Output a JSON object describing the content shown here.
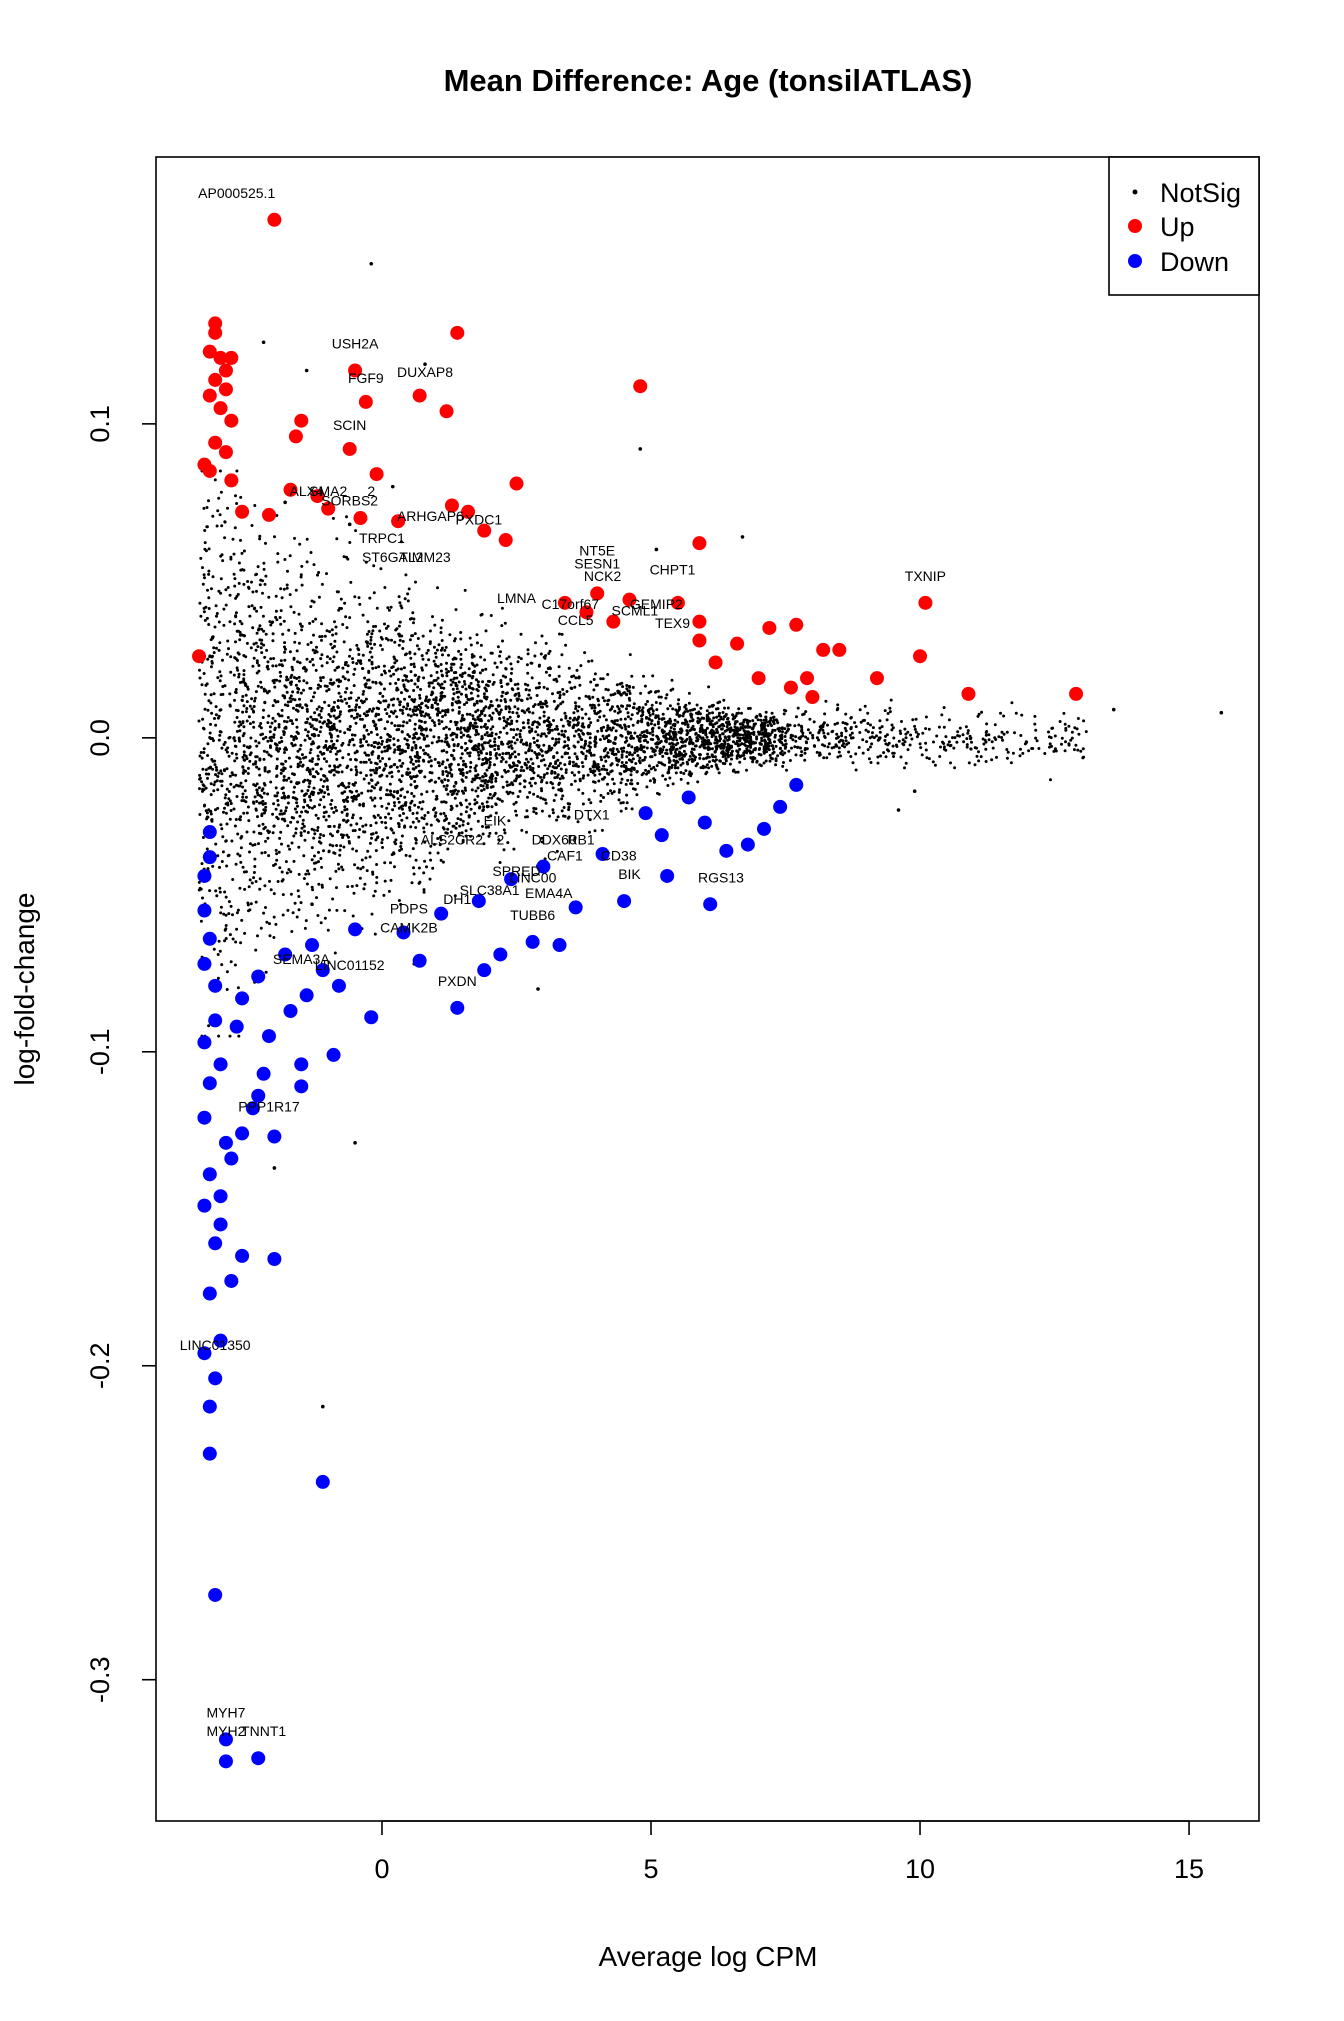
{
  "chart_data": {
    "type": "scatter",
    "title": "Mean Difference: Age (tonsilATLAS)",
    "xlabel": "Average log CPM",
    "ylabel": "log-fold-change",
    "xlim": [
      -4.2,
      16.3
    ],
    "ylim": [
      -0.345,
      0.185
    ],
    "xticks": [
      0,
      5,
      10,
      15
    ],
    "yticks": [
      0.1,
      0.0,
      -0.1,
      -0.2,
      -0.3
    ],
    "xtick_labels": [
      "0",
      "5",
      "10",
      "15"
    ],
    "ytick_labels": [
      "0.1",
      "0.0",
      "-0.1",
      "-0.2",
      "-0.3"
    ],
    "grid": false,
    "legend_position": "top-right",
    "legend": [
      {
        "label": "NotSig",
        "color": "#000000",
        "marker": "small-dot"
      },
      {
        "label": "Up",
        "color": "#ff0000",
        "marker": "large-dot"
      },
      {
        "label": "Down",
        "color": "#0000ff",
        "marker": "large-dot"
      }
    ],
    "notsig_outliers": [
      [
        -0.2,
        0.151
      ],
      [
        -2.2,
        0.126
      ],
      [
        -1.4,
        0.117
      ],
      [
        0.8,
        0.119
      ],
      [
        4.8,
        0.092
      ],
      [
        6.7,
        0.064
      ],
      [
        5.1,
        0.06
      ],
      [
        0.2,
        0.08
      ],
      [
        -1.8,
        0.075
      ],
      [
        -0.6,
        0.068
      ],
      [
        2.9,
        -0.08
      ],
      [
        -0.5,
        -0.129
      ],
      [
        -2.0,
        -0.137
      ],
      [
        -1.1,
        -0.213
      ],
      [
        0.6,
        -0.072
      ],
      [
        -1.3,
        -0.053
      ],
      [
        15.6,
        0.008
      ],
      [
        9.6,
        -0.023
      ],
      [
        9.9,
        -0.017
      ],
      [
        13.6,
        0.009
      ]
    ],
    "up_points": [
      [
        -2.0,
        0.165
      ],
      [
        -3.1,
        0.132
      ],
      [
        -3.1,
        0.129
      ],
      [
        -2.8,
        0.121
      ],
      [
        -3.2,
        0.123
      ],
      [
        -3.0,
        0.121
      ],
      [
        -2.9,
        0.117
      ],
      [
        -3.1,
        0.114
      ],
      [
        -3.2,
        0.109
      ],
      [
        -2.9,
        0.111
      ],
      [
        -3.0,
        0.105
      ],
      [
        -2.8,
        0.101
      ],
      [
        -3.1,
        0.094
      ],
      [
        -2.9,
        0.091
      ],
      [
        -3.2,
        0.085
      ],
      [
        -2.8,
        0.082
      ],
      [
        -3.3,
        0.087
      ],
      [
        1.4,
        0.129
      ],
      [
        -0.5,
        0.117
      ],
      [
        4.8,
        0.112
      ],
      [
        -0.3,
        0.107
      ],
      [
        0.7,
        0.109
      ],
      [
        1.2,
        0.104
      ],
      [
        -1.5,
        0.101
      ],
      [
        -0.6,
        0.092
      ],
      [
        -1.6,
        0.096
      ],
      [
        -0.1,
        0.084
      ],
      [
        2.5,
        0.081
      ],
      [
        -3.4,
        0.026
      ],
      [
        -2.6,
        0.072
      ],
      [
        -2.1,
        0.071
      ],
      [
        -1.7,
        0.079
      ],
      [
        -1.2,
        0.077
      ],
      [
        -1.0,
        0.073
      ],
      [
        -0.4,
        0.07
      ],
      [
        0.3,
        0.069
      ],
      [
        1.3,
        0.074
      ],
      [
        1.6,
        0.072
      ],
      [
        1.9,
        0.066
      ],
      [
        2.3,
        0.063
      ],
      [
        5.9,
        0.062
      ],
      [
        10.1,
        0.043
      ],
      [
        12.9,
        0.014
      ],
      [
        10.9,
        0.014
      ],
      [
        10.0,
        0.026
      ],
      [
        9.2,
        0.019
      ],
      [
        8.5,
        0.028
      ],
      [
        8.2,
        0.028
      ],
      [
        7.7,
        0.036
      ],
      [
        7.2,
        0.035
      ],
      [
        6.6,
        0.03
      ],
      [
        6.2,
        0.024
      ],
      [
        7.9,
        0.019
      ],
      [
        8.0,
        0.013
      ],
      [
        7.6,
        0.016
      ],
      [
        7.0,
        0.019
      ],
      [
        5.9,
        0.037
      ],
      [
        5.5,
        0.043
      ],
      [
        5.9,
        0.031
      ],
      [
        4.6,
        0.044
      ],
      [
        4.0,
        0.046
      ],
      [
        3.4,
        0.043
      ],
      [
        3.8,
        0.04
      ],
      [
        4.3,
        0.037
      ]
    ],
    "down_points": [
      [
        -1.1,
        -0.237
      ],
      [
        -3.1,
        -0.273
      ],
      [
        -2.9,
        -0.326
      ],
      [
        -2.3,
        -0.325
      ],
      [
        -2.9,
        -0.319
      ],
      [
        -3.2,
        -0.228
      ],
      [
        -3.2,
        -0.213
      ],
      [
        -3.1,
        -0.204
      ],
      [
        -3.0,
        -0.192
      ],
      [
        -3.3,
        -0.196
      ],
      [
        -3.2,
        -0.177
      ],
      [
        -2.8,
        -0.173
      ],
      [
        -2.6,
        -0.165
      ],
      [
        -2.0,
        -0.166
      ],
      [
        -3.1,
        -0.161
      ],
      [
        -3.0,
        -0.155
      ],
      [
        -3.3,
        -0.149
      ],
      [
        -3.0,
        -0.146
      ],
      [
        -3.2,
        -0.139
      ],
      [
        -2.8,
        -0.134
      ],
      [
        -2.9,
        -0.129
      ],
      [
        -2.0,
        -0.127
      ],
      [
        -2.6,
        -0.126
      ],
      [
        -2.4,
        -0.118
      ],
      [
        -3.3,
        -0.121
      ],
      [
        -2.3,
        -0.114
      ],
      [
        -2.2,
        -0.107
      ],
      [
        -3.0,
        -0.104
      ],
      [
        -1.5,
        -0.111
      ],
      [
        -1.5,
        -0.104
      ],
      [
        -0.9,
        -0.101
      ],
      [
        -3.3,
        -0.097
      ],
      [
        -2.7,
        -0.092
      ],
      [
        -2.1,
        -0.095
      ],
      [
        -1.7,
        -0.087
      ],
      [
        -1.4,
        -0.082
      ],
      [
        -0.8,
        -0.079
      ],
      [
        -0.2,
        -0.089
      ],
      [
        -1.1,
        -0.074
      ],
      [
        1.4,
        -0.086
      ],
      [
        0.7,
        -0.071
      ],
      [
        1.9,
        -0.074
      ],
      [
        2.2,
        -0.069
      ],
      [
        2.8,
        -0.065
      ],
      [
        3.3,
        -0.066
      ],
      [
        4.5,
        -0.052
      ],
      [
        5.3,
        -0.044
      ],
      [
        6.1,
        -0.053
      ],
      [
        6.4,
        -0.036
      ],
      [
        6.8,
        -0.034
      ],
      [
        7.1,
        -0.029
      ],
      [
        7.4,
        -0.022
      ],
      [
        7.7,
        -0.015
      ],
      [
        6.0,
        -0.027
      ],
      [
        5.7,
        -0.019
      ],
      [
        5.2,
        -0.031
      ],
      [
        4.9,
        -0.024
      ],
      [
        4.1,
        -0.037
      ],
      [
        3.6,
        -0.054
      ],
      [
        3.0,
        -0.041
      ],
      [
        2.4,
        -0.045
      ],
      [
        1.8,
        -0.052
      ],
      [
        1.1,
        -0.056
      ],
      [
        0.4,
        -0.062
      ],
      [
        -0.5,
        -0.061
      ],
      [
        -1.3,
        -0.066
      ],
      [
        -1.8,
        -0.069
      ],
      [
        -2.3,
        -0.076
      ],
      [
        -2.6,
        -0.083
      ],
      [
        -3.2,
        -0.038
      ],
      [
        -3.3,
        -0.044
      ],
      [
        -3.3,
        -0.055
      ],
      [
        -3.2,
        -0.064
      ],
      [
        -3.3,
        -0.072
      ],
      [
        -3.1,
        -0.079
      ],
      [
        -3.2,
        -0.03
      ],
      [
        -3.1,
        -0.09
      ],
      [
        -3.2,
        -0.11
      ]
    ],
    "annotations": [
      {
        "label": "AP000525.1",
        "x": -2.7,
        "y": 0.172
      },
      {
        "label": "USH2A",
        "x": -0.5,
        "y": 0.124
      },
      {
        "label": "FGF9",
        "x": -0.3,
        "y": 0.113
      },
      {
        "label": "DUXAP8",
        "x": 0.8,
        "y": 0.115
      },
      {
        "label": "SCIN",
        "x": -0.6,
        "y": 0.098
      },
      {
        "label": "ALX4",
        "x": -1.4,
        "y": 0.077
      },
      {
        "label": "SMA2",
        "x": -1.0,
        "y": 0.077
      },
      {
        "label": "2",
        "x": -0.2,
        "y": 0.077
      },
      {
        "label": "SORBS2",
        "x": -0.6,
        "y": 0.074
      },
      {
        "label": "ARHGAP6",
        "x": 0.9,
        "y": 0.069
      },
      {
        "label": "PXDC1",
        "x": 1.8,
        "y": 0.068
      },
      {
        "label": "TRPC1",
        "x": 0.0,
        "y": 0.062
      },
      {
        "label": "ST6GAL2",
        "x": 0.2,
        "y": 0.056
      },
      {
        "label": "TIMM23",
        "x": 0.8,
        "y": 0.056
      },
      {
        "label": "NT5E",
        "x": 4.0,
        "y": 0.058
      },
      {
        "label": "SESN1",
        "x": 4.0,
        "y": 0.054
      },
      {
        "label": "NCK2",
        "x": 4.1,
        "y": 0.05
      },
      {
        "label": "CHPT1",
        "x": 5.4,
        "y": 0.052
      },
      {
        "label": "TXNIP",
        "x": 10.1,
        "y": 0.05
      },
      {
        "label": "LMNA",
        "x": 2.5,
        "y": 0.043
      },
      {
        "label": "C17orf67",
        "x": 3.5,
        "y": 0.041
      },
      {
        "label": "GEMIP2",
        "x": 5.1,
        "y": 0.041
      },
      {
        "label": "SCML1",
        "x": 4.7,
        "y": 0.039
      },
      {
        "label": "CCL5",
        "x": 3.6,
        "y": 0.036
      },
      {
        "label": "TEX9",
        "x": 5.4,
        "y": 0.035
      },
      {
        "label": "EIK",
        "x": 2.1,
        "y": -0.028
      },
      {
        "label": "DTX1",
        "x": 3.9,
        "y": -0.026
      },
      {
        "label": "ALS2CR2",
        "x": 1.3,
        "y": -0.034
      },
      {
        "label": "2",
        "x": 2.2,
        "y": -0.034
      },
      {
        "label": "DDX60",
        "x": 3.2,
        "y": -0.034
      },
      {
        "label": "RB1",
        "x": 3.7,
        "y": -0.034
      },
      {
        "label": "CAF1",
        "x": 3.4,
        "y": -0.039
      },
      {
        "label": "CD38",
        "x": 4.4,
        "y": -0.039
      },
      {
        "label": "BIK",
        "x": 4.6,
        "y": -0.045
      },
      {
        "label": "RGS13",
        "x": 6.3,
        "y": -0.046
      },
      {
        "label": "SPRED",
        "x": 2.5,
        "y": -0.044
      },
      {
        "label": "LINC00",
        "x": 2.8,
        "y": -0.046
      },
      {
        "label": "SLC38A1",
        "x": 2.0,
        "y": -0.05
      },
      {
        "label": "EMA4A",
        "x": 3.1,
        "y": -0.051
      },
      {
        "label": "PDPS",
        "x": 0.5,
        "y": -0.056
      },
      {
        "label": "DH1",
        "x": 1.4,
        "y": -0.053
      },
      {
        "label": "TUBB6",
        "x": 2.8,
        "y": -0.058
      },
      {
        "label": "CAMK2B",
        "x": 0.5,
        "y": -0.062
      },
      {
        "label": "SEMA3A",
        "x": -1.5,
        "y": -0.072
      },
      {
        "label": "LINC01152",
        "x": -0.6,
        "y": -0.074
      },
      {
        "label": "PXDN",
        "x": 1.4,
        "y": -0.079
      },
      {
        "label": "PPP1R17",
        "x": -2.1,
        "y": -0.119
      },
      {
        "label": "LINC01350",
        "x": -3.1,
        "y": -0.195
      },
      {
        "label": "MYH7",
        "x": -2.9,
        "y": -0.312
      },
      {
        "label": "MYH2",
        "x": -2.9,
        "y": -0.318
      },
      {
        "label": "TNNT1",
        "x": -2.2,
        "y": -0.318
      }
    ]
  }
}
